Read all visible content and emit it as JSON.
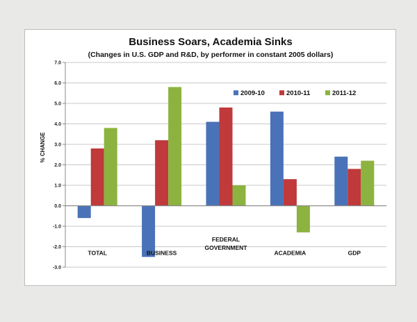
{
  "chart_data": {
    "type": "bar",
    "title": "Business Soars, Academia Sinks",
    "subtitle": "(Changes in U.S. GDP and R&D, by performer in constant 2005 dollars)",
    "xlabel": "",
    "ylabel": "% CHANGE",
    "ylim": [
      -3.0,
      7.0
    ],
    "yticks": [
      "7.0",
      "6.0",
      "5.0",
      "4.0",
      "3.0",
      "2.0",
      "1.0",
      "0.0",
      "-1.0",
      "-2.0",
      "-3.0"
    ],
    "grid": true,
    "legend_position": "top-right",
    "categories": [
      [
        "TOTAL"
      ],
      [
        "BUSINESS"
      ],
      [
        "FEDERAL",
        "GOVERNMENT"
      ],
      [
        "ACADEMIA"
      ],
      [
        "GDP"
      ]
    ],
    "series": [
      {
        "name": "2009-10",
        "color": "#4a72b8",
        "values": [
          -0.6,
          -2.5,
          4.1,
          4.6,
          2.4
        ]
      },
      {
        "name": "2010-11",
        "color": "#c0393b",
        "values": [
          2.8,
          3.2,
          4.8,
          1.3,
          1.8
        ]
      },
      {
        "name": "2011-12",
        "color": "#8cb33f",
        "values": [
          3.8,
          5.8,
          1.0,
          -1.3,
          2.2
        ]
      }
    ]
  }
}
